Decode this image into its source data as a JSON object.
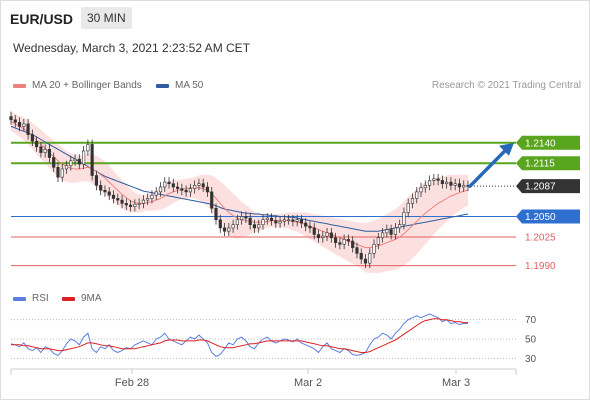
{
  "header": {
    "pair": "EUR/USD",
    "timeframe": "30 MIN",
    "datetime": "Wednesday, March 3, 2021 2:23:52 AM CET"
  },
  "legend": {
    "ma20": "MA 20 + Bollinger Bands",
    "ma50": "MA 50",
    "credit": "Research © 2021 Trading Central",
    "rsi": "RSI",
    "rsi_ma": "9MA"
  },
  "colors": {
    "ma20": "#f08080",
    "ma50": "#2f5d9f",
    "resistance": "#5aa51e",
    "support_blue": "#2f6fd0",
    "support_red": "#e36060",
    "bands": "#fbd5d5",
    "arrow": "#2569b8",
    "current": "#333333",
    "rsi": "#5b7fe0",
    "rsi_ma": "#e02020"
  },
  "chart_data": [
    {
      "type": "line",
      "title": "EUR/USD",
      "subtitle": "30 MIN",
      "y_range": [
        1.197,
        1.218
      ],
      "x_ticks": [
        "Feb 28",
        "Mar 2",
        "Mar 3"
      ],
      "levels": [
        {
          "value": 1.214,
          "label": "1.2140",
          "kind": "resistance"
        },
        {
          "value": 1.2115,
          "label": "1.2115",
          "kind": "resistance"
        },
        {
          "value": 1.2087,
          "label": "1.2087",
          "kind": "current"
        },
        {
          "value": 1.205,
          "label": "1.2050",
          "kind": "pivot"
        },
        {
          "value": 1.2025,
          "label": "1.2025",
          "kind": "support"
        },
        {
          "value": 1.199,
          "label": "1.1990",
          "kind": "support"
        }
      ],
      "price": [
        1.2168,
        1.2165,
        1.216,
        1.2163,
        1.215,
        1.2142,
        1.2135,
        1.2128,
        1.2132,
        1.2122,
        1.211,
        1.2098,
        1.2108,
        1.2112,
        1.2118,
        1.212,
        1.2114,
        1.213,
        1.2138,
        1.21,
        1.2088,
        1.2082,
        1.208,
        1.2076,
        1.2072,
        1.207,
        1.2066,
        1.2064,
        1.2062,
        1.2065,
        1.2066,
        1.207,
        1.2072,
        1.2076,
        1.208,
        1.2086,
        1.2092,
        1.209,
        1.2086,
        1.2084,
        1.2082,
        1.208,
        1.2084,
        1.2088,
        1.209,
        1.2086,
        1.208,
        1.206,
        1.2046,
        1.2036,
        1.2032,
        1.2036,
        1.204,
        1.2046,
        1.205,
        1.2048,
        1.204,
        1.2036,
        1.204,
        1.2046,
        1.2048,
        1.2045,
        1.2042,
        1.2044,
        1.2046,
        1.2046,
        1.2044,
        1.2046,
        1.2042,
        1.2038,
        1.2036,
        1.2028,
        1.2024,
        1.2026,
        1.203,
        1.2024,
        1.2018,
        1.2016,
        1.2022,
        1.202,
        1.2012,
        1.2005,
        1.1998,
        1.1993,
        1.2005,
        1.2016,
        1.2024,
        1.203,
        1.2034,
        1.2028,
        1.2036,
        1.204,
        1.2055,
        1.2066,
        1.2072,
        1.208,
        1.2085,
        1.2088,
        1.2094,
        1.2096,
        1.2094,
        1.209,
        1.2092,
        1.2088,
        1.209,
        1.2086,
        1.2088,
        1.2087
      ],
      "ma20": [
        1.2166,
        1.2163,
        1.216,
        1.2157,
        1.2153,
        1.2148,
        1.2143,
        1.2138,
        1.2133,
        1.2128,
        1.2123,
        1.2118,
        1.2114,
        1.2111,
        1.2109,
        1.2108,
        1.2108,
        1.2109,
        1.211,
        1.2108,
        1.2105,
        1.2101,
        1.2097,
        1.2092,
        1.2087,
        1.2082,
        1.2077,
        1.2073,
        1.2069,
        1.2067,
        1.2066,
        1.2066,
        1.2067,
        1.2068,
        1.207,
        1.2072,
        1.2075,
        1.2078,
        1.208,
        1.2082,
        1.2083,
        1.2084,
        1.2085,
        1.2085,
        1.2085,
        1.2084,
        1.2082,
        1.2078,
        1.2072,
        1.2066,
        1.206,
        1.2055,
        1.2051,
        1.2048,
        1.2046,
        1.2045,
        1.2044,
        1.2043,
        1.2043,
        1.2043,
        1.2044,
        1.2045,
        1.2045,
        1.2045,
        1.2045,
        1.2045,
        1.2044,
        1.2043,
        1.2042,
        1.204,
        1.2038,
        1.2036,
        1.2034,
        1.2032,
        1.203,
        1.2028,
        1.2026,
        1.2024,
        1.2022,
        1.202,
        1.2018,
        1.2016,
        1.2014,
        1.2012,
        1.2012,
        1.2013,
        1.2014,
        1.2016,
        1.2018,
        1.202,
        1.2022,
        1.2025,
        1.2029,
        1.2034,
        1.2039,
        1.2044,
        1.2049,
        1.2054,
        1.2058,
        1.2062,
        1.2066,
        1.2069,
        1.2072,
        1.2075,
        1.2077,
        1.2079,
        1.2081,
        1.2082
      ],
      "ma50": [
        1.216,
        1.2158,
        1.2156,
        1.2154,
        1.2152,
        1.215,
        1.2147,
        1.2144,
        1.2141,
        1.2138,
        1.2135,
        1.2132,
        1.2129,
        1.2126,
        1.2123,
        1.212,
        1.2117,
        1.2114,
        1.2111,
        1.2108,
        1.2105,
        1.2102,
        1.2099,
        1.2097,
        1.2095,
        1.2093,
        1.2091,
        1.2089,
        1.2087,
        1.2085,
        1.2083,
        1.2081,
        1.208,
        1.2079,
        1.2078,
        1.2077,
        1.2076,
        1.2075,
        1.2074,
        1.2073,
        1.2072,
        1.2071,
        1.207,
        1.2069,
        1.2068,
        1.2067,
        1.2066,
        1.2065,
        1.2063,
        1.2061,
        1.2059,
        1.2058,
        1.2057,
        1.2056,
        1.2055,
        1.2054,
        1.2054,
        1.2053,
        1.2053,
        1.2052,
        1.2052,
        1.2051,
        1.2051,
        1.205,
        1.205,
        1.2049,
        1.2049,
        1.2048,
        1.2047,
        1.2046,
        1.2045,
        1.2044,
        1.2043,
        1.2042,
        1.2041,
        1.204,
        1.2039,
        1.2038,
        1.2037,
        1.2036,
        1.2035,
        1.2034,
        1.2033,
        1.2032,
        1.2032,
        1.2032,
        1.2032,
        1.2033,
        1.2034,
        1.2035,
        1.2036,
        1.2037,
        1.2038,
        1.2039,
        1.204,
        1.2041,
        1.2042,
        1.2043,
        1.2044,
        1.2045,
        1.2046,
        1.2047,
        1.2048,
        1.2049,
        1.205,
        1.2051,
        1.2052,
        1.2053
      ],
      "band_width": [
        0.0012,
        0.0012,
        0.0013,
        0.0014,
        0.0015,
        0.0016,
        0.0017,
        0.0018,
        0.0018,
        0.0019,
        0.0019,
        0.002,
        0.002,
        0.0019,
        0.0018,
        0.0017,
        0.0016,
        0.0016,
        0.0017,
        0.0018,
        0.0019,
        0.002,
        0.002,
        0.002,
        0.0019,
        0.0018,
        0.0017,
        0.0016,
        0.0014,
        0.0012,
        0.0011,
        0.001,
        0.001,
        0.0011,
        0.0012,
        0.0014,
        0.0015,
        0.0015,
        0.0014,
        0.0013,
        0.0012,
        0.0012,
        0.0012,
        0.0013,
        0.0015,
        0.0017,
        0.0019,
        0.0022,
        0.0025,
        0.0027,
        0.0028,
        0.0028,
        0.0027,
        0.0025,
        0.0022,
        0.0019,
        0.0016,
        0.0013,
        0.0011,
        0.0009,
        0.0008,
        0.0008,
        0.0008,
        0.0008,
        0.0009,
        0.001,
        0.0011,
        0.0012,
        0.0013,
        0.0015,
        0.0016,
        0.0017,
        0.0018,
        0.0019,
        0.002,
        0.0021,
        0.0022,
        0.0023,
        0.0024,
        0.0025,
        0.0026,
        0.0027,
        0.0028,
        0.003,
        0.0031,
        0.0032,
        0.0033,
        0.0034,
        0.0035,
        0.0036,
        0.0037,
        0.0038,
        0.0039,
        0.004,
        0.004,
        0.004,
        0.0039,
        0.0038,
        0.0036,
        0.0034,
        0.0032,
        0.003,
        0.0028,
        0.0026,
        0.0024,
        0.0022,
        0.002,
        0.0019
      ],
      "projection": {
        "from": 1.2087,
        "to": 1.214
      }
    },
    {
      "type": "line",
      "title": "RSI",
      "y_range": [
        20,
        80
      ],
      "y_ticks": [
        70,
        50,
        30
      ],
      "series": [
        {
          "name": "RSI",
          "values": [
            45,
            44,
            42,
            46,
            40,
            38,
            41,
            36,
            42,
            40,
            35,
            33,
            38,
            45,
            50,
            48,
            44,
            52,
            56,
            40,
            36,
            42,
            40,
            44,
            38,
            36,
            38,
            41,
            40,
            44,
            46,
            48,
            46,
            44,
            50,
            52,
            56,
            50,
            48,
            46,
            44,
            48,
            52,
            50,
            54,
            50,
            46,
            36,
            32,
            34,
            40,
            46,
            44,
            50,
            52,
            48,
            42,
            40,
            46,
            50,
            52,
            48,
            46,
            48,
            50,
            49,
            47,
            50,
            46,
            44,
            42,
            40,
            36,
            42,
            46,
            40,
            38,
            36,
            40,
            38,
            34,
            33,
            34,
            36,
            44,
            50,
            52,
            56,
            54,
            50,
            56,
            60,
            66,
            70,
            72,
            74,
            72,
            74,
            76,
            74,
            72,
            68,
            70,
            66,
            67,
            65,
            66,
            66
          ]
        },
        {
          "name": "9MA",
          "values": [
            44,
            44,
            44,
            43,
            43,
            42,
            41,
            40,
            40,
            40,
            39,
            38,
            38,
            39,
            40,
            41,
            42,
            44,
            46,
            46,
            45,
            44,
            43,
            43,
            42,
            41,
            40,
            40,
            40,
            40,
            41,
            42,
            43,
            44,
            45,
            46,
            48,
            49,
            49,
            49,
            48,
            48,
            48,
            48,
            49,
            49,
            48,
            46,
            44,
            42,
            41,
            41,
            41,
            42,
            43,
            44,
            45,
            45,
            46,
            47,
            48,
            48,
            48,
            48,
            48,
            48,
            48,
            48,
            48,
            47,
            46,
            45,
            44,
            43,
            43,
            42,
            41,
            40,
            40,
            39,
            38,
            37,
            36,
            36,
            37,
            39,
            41,
            43,
            45,
            47,
            49,
            52,
            55,
            58,
            61,
            64,
            67,
            69,
            70,
            71,
            71,
            70,
            70,
            69,
            68,
            68,
            67,
            67
          ]
        }
      ]
    }
  ]
}
